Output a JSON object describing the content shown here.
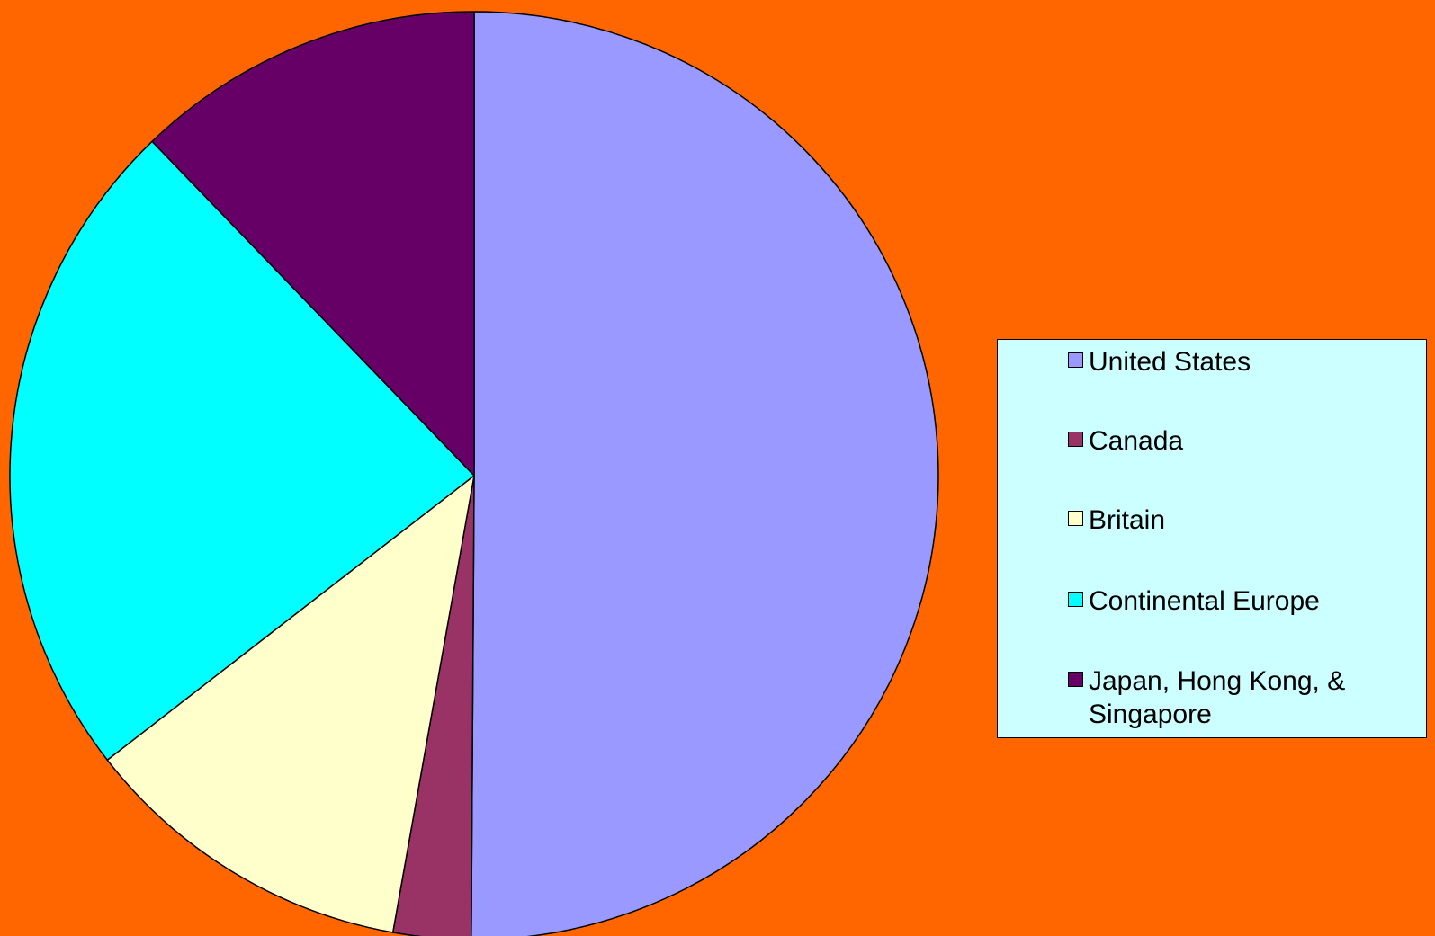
{
  "colors": {
    "background": "#ff6600",
    "legend_background": "#ccffff",
    "outline": "#000000"
  },
  "chart_data": {
    "type": "pie",
    "title": "",
    "start_angle": "12 o'clock",
    "direction": "clockwise",
    "legend_position": "right",
    "categories": [
      "United States",
      "Canada",
      "Britain",
      "Continental Europe",
      "Japan, Hong Kong, & Singapore"
    ],
    "values": [
      50.1,
      2.7,
      11.7,
      23.3,
      12.2
    ],
    "unit": "percent",
    "slice_colors": [
      "#9999ff",
      "#993366",
      "#ffffcc",
      "#00ffff",
      "#660066"
    ]
  }
}
